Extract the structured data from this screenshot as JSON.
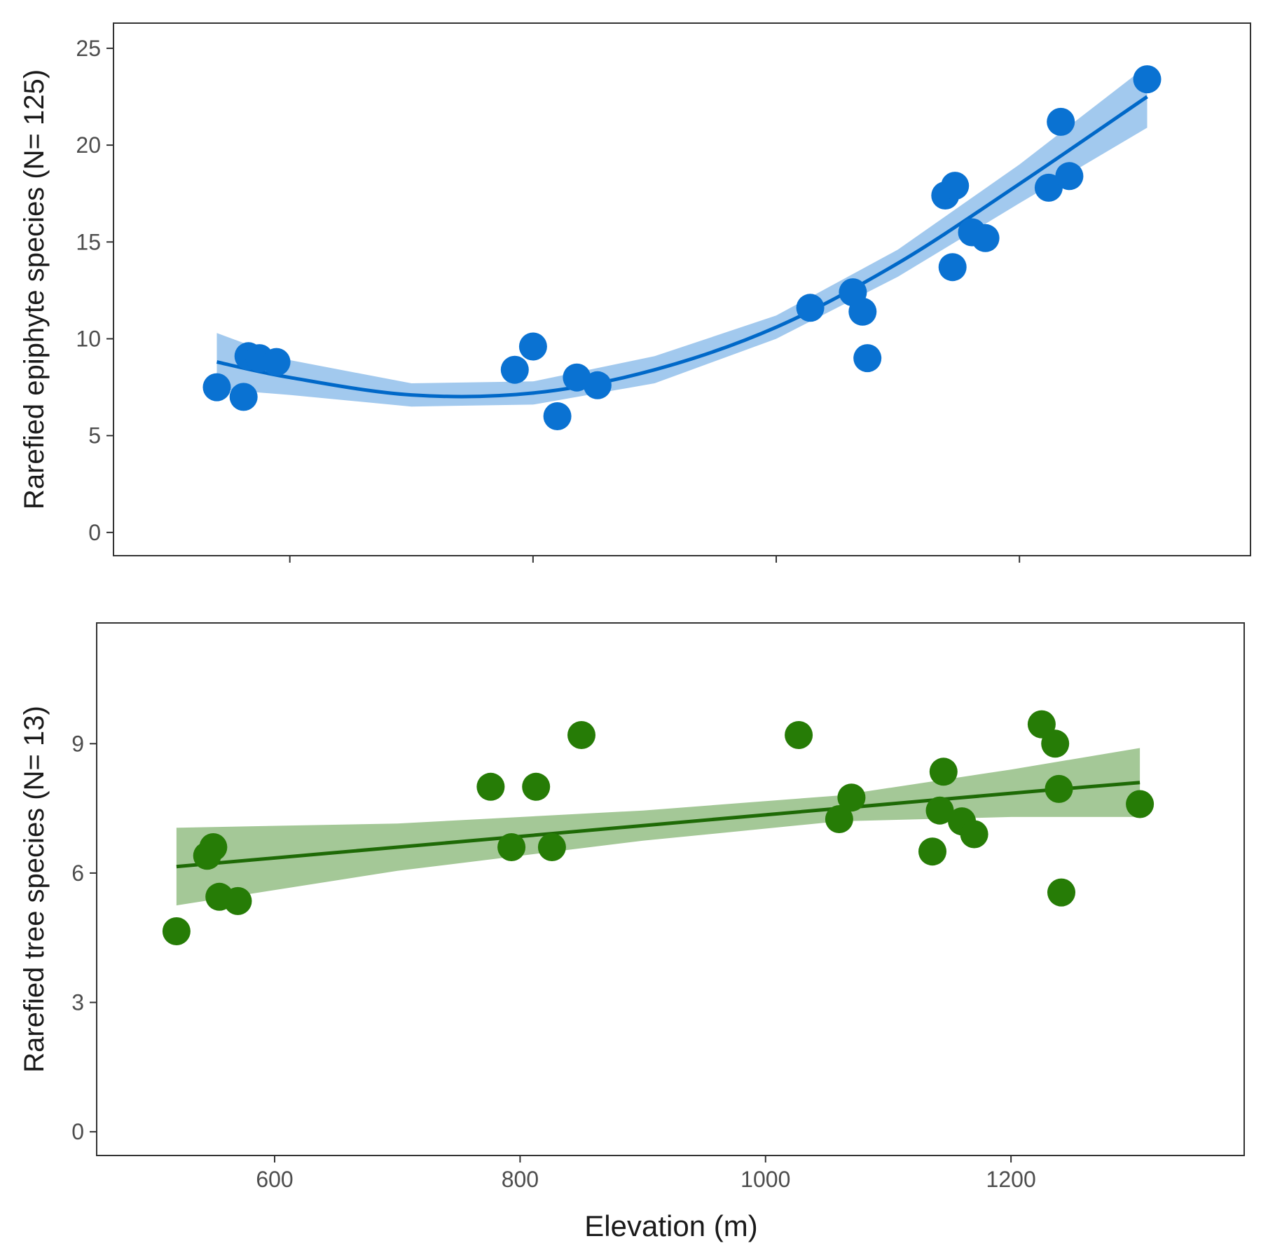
{
  "figure": {
    "xlabel": "Elevation (m)"
  },
  "chart_data": [
    {
      "type": "scatter",
      "name": "epiphytes",
      "ylabel": "Rarefied epiphyte species (N= 125)",
      "xlim": [
        455,
        1390
      ],
      "ylim": [
        -1.2,
        26.3
      ],
      "yticks": [
        0,
        5,
        10,
        15,
        20,
        25
      ],
      "xticks": [
        600,
        800,
        1000,
        1200
      ],
      "show_x_tick_labels": false,
      "color": "#0a72d2",
      "fit": {
        "model": "quadratic",
        "x": [
          540,
          600,
          700,
          800,
          900,
          1000,
          1100,
          1200,
          1305
        ],
        "y": [
          8.8,
          8.0,
          7.1,
          7.2,
          8.4,
          10.6,
          13.9,
          18.0,
          22.5
        ],
        "band_upper": [
          10.3,
          8.9,
          7.7,
          7.8,
          9.1,
          11.2,
          14.6,
          19.0,
          24.1
        ],
        "band_lower": [
          7.4,
          7.1,
          6.5,
          6.6,
          7.7,
          10.0,
          13.2,
          17.0,
          20.9
        ]
      },
      "points": {
        "x": [
          540,
          562,
          566,
          575,
          589,
          785,
          800,
          820,
          836,
          853,
          1028,
          1063,
          1071,
          1075,
          1139,
          1145,
          1147,
          1161,
          1172,
          1224,
          1234,
          1241,
          1305
        ],
        "y": [
          7.5,
          7.0,
          9.1,
          9.0,
          8.8,
          8.4,
          9.6,
          6.0,
          8.0,
          7.6,
          11.6,
          12.4,
          11.4,
          9.0,
          17.4,
          13.7,
          17.9,
          15.5,
          15.2,
          17.8,
          21.2,
          18.4,
          23.4
        ]
      }
    },
    {
      "type": "scatter",
      "name": "trees",
      "ylabel": "Rarefied tree species (N= 13)",
      "xlim": [
        455,
        1390
      ],
      "ylim": [
        -0.55,
        11.8
      ],
      "yticks": [
        0,
        3,
        6,
        9
      ],
      "xticks": [
        600,
        800,
        1000,
        1200
      ],
      "show_x_tick_labels": true,
      "color": "#267c06",
      "fit": {
        "model": "linear",
        "x": [
          520,
          700,
          900,
          1060,
          1200,
          1305
        ],
        "y": [
          6.15,
          6.6,
          7.1,
          7.5,
          7.85,
          8.1
        ],
        "band_upper": [
          7.05,
          7.15,
          7.45,
          7.8,
          8.4,
          8.9
        ],
        "band_lower": [
          5.25,
          6.05,
          6.75,
          7.2,
          7.3,
          7.3
        ]
      },
      "points": {
        "x": [
          520,
          545,
          550,
          555,
          570,
          776,
          793,
          813,
          826,
          850,
          1027,
          1060,
          1070,
          1136,
          1142,
          1145,
          1160,
          1170,
          1225,
          1236,
          1239,
          1241,
          1305
        ],
        "y": [
          4.65,
          6.4,
          6.6,
          5.45,
          5.35,
          8.0,
          6.6,
          8.0,
          6.6,
          9.2,
          9.2,
          7.25,
          7.75,
          6.5,
          7.45,
          8.35,
          7.2,
          6.9,
          9.45,
          9.0,
          7.95,
          5.55,
          7.6
        ]
      }
    }
  ]
}
